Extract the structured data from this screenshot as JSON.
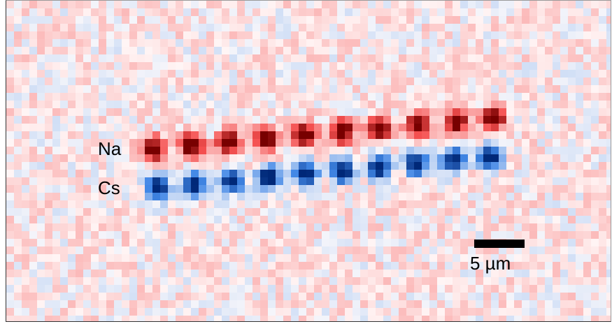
{
  "image": {
    "labels": {
      "na": "Na",
      "cs": "Cs"
    },
    "scale_bar": {
      "text": "5 µm"
    },
    "colors": {
      "na_peak": "#7a0000",
      "na_mid": "#e0353a",
      "cs_peak": "#002a7a",
      "cs_mid": "#2f7fe0",
      "background": "#fbf2f3"
    },
    "atom_count_per_row": 10
  }
}
